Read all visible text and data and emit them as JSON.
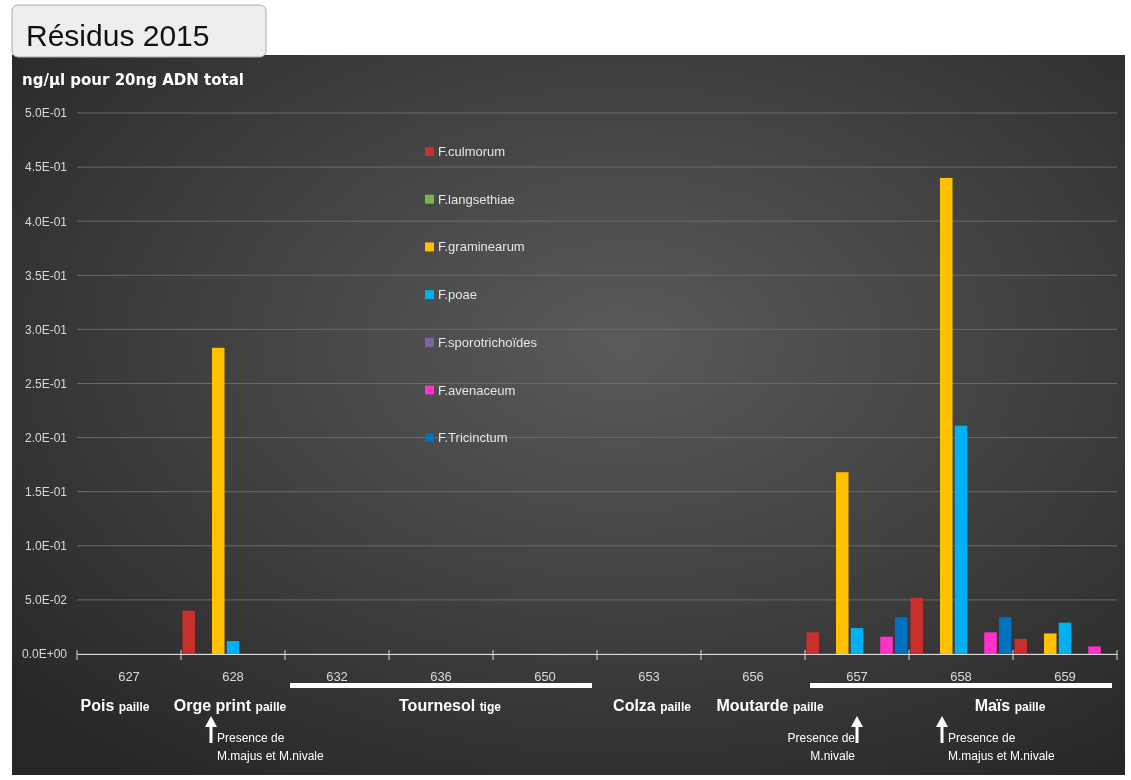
{
  "chart_data": {
    "type": "bar",
    "title": "Résidus 2015",
    "ylabel": "ng/µl pour 20ng ADN total",
    "categories": [
      "627",
      "628",
      "632",
      "636",
      "650",
      "653",
      "656",
      "657",
      "658",
      "659"
    ],
    "series": [
      {
        "name": "F.culmorum",
        "color": "#c9302c",
        "values": [
          0,
          0.04,
          0,
          0,
          0,
          0,
          0,
          0.02,
          0.052,
          0.014
        ]
      },
      {
        "name": "F.langsethiae",
        "color": "#7cb342",
        "values": [
          0,
          0,
          0,
          0,
          0,
          0,
          0,
          0,
          0,
          0
        ]
      },
      {
        "name": "F.graminearum",
        "color": "#ffc000",
        "values": [
          0,
          0.283,
          0,
          0,
          0,
          0,
          0,
          0.168,
          0.44,
          0.019
        ]
      },
      {
        "name": "F.poae",
        "color": "#00b0f0",
        "values": [
          0,
          0.012,
          0,
          0,
          0,
          0,
          0,
          0.024,
          0.211,
          0.029
        ]
      },
      {
        "name": "F.sporotrichoïdes",
        "color": "#8064a2",
        "values": [
          0,
          0,
          0,
          0,
          0,
          0,
          0,
          0,
          0,
          0
        ]
      },
      {
        "name": "F.avenaceum",
        "color": "#ff33cc",
        "values": [
          0,
          0,
          0,
          0,
          0,
          0,
          0,
          0.016,
          0.02,
          0.007
        ]
      },
      {
        "name": "F.Tricinctum",
        "color": "#0070c0",
        "values": [
          0,
          0,
          0,
          0,
          0,
          0,
          0,
          0.034,
          0.034,
          0
        ]
      }
    ],
    "ylim": [
      0,
      0.5
    ],
    "yticks": [
      {
        "value": 0,
        "label": "0.0E+00"
      },
      {
        "value": 0.05,
        "label": "5.0E-02"
      },
      {
        "value": 0.1,
        "label": "1.0E-01"
      },
      {
        "value": 0.15,
        "label": "1.5E-01"
      },
      {
        "value": 0.2,
        "label": "2.0E-01"
      },
      {
        "value": 0.25,
        "label": "2.5E-01"
      },
      {
        "value": 0.3,
        "label": "3.0E-01"
      },
      {
        "value": 0.35,
        "label": "3.5E-01"
      },
      {
        "value": 0.4,
        "label": "4.0E-01"
      },
      {
        "value": 0.45,
        "label": "4.5E-01"
      },
      {
        "value": 0.5,
        "label": "5.0E-01"
      }
    ],
    "grid": "y",
    "legend": "top",
    "annotations": [
      "Pois paille",
      "Orge print paille",
      "Tournesol tige",
      "Colza paille",
      "Moutarde paille",
      "Maïs paille",
      "Presence de M.majus et M.nivale",
      "Presence de M.nivale",
      "Presence de M.majus et M.nivale"
    ]
  }
}
